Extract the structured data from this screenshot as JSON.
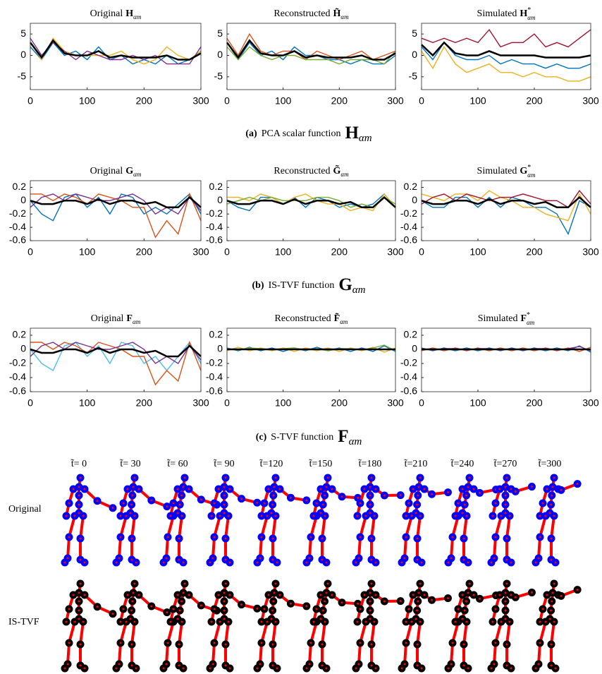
{
  "chart_data": [
    {
      "type": "line",
      "title": "Original",
      "title_symbol": "H",
      "title_subscript": "αm",
      "x": [
        0,
        20,
        40,
        60,
        80,
        100,
        120,
        140,
        160,
        180,
        200,
        220,
        240,
        260,
        280,
        300
      ],
      "xlim": [
        0,
        300
      ],
      "xticks": [
        0,
        100,
        200,
        300
      ],
      "ylim": [
        -8,
        7.5
      ],
      "yticks": [
        -5,
        0,
        5
      ],
      "series": [
        {
          "color": "#0072bd",
          "values": [
            2,
            -1,
            3,
            0,
            1,
            -1,
            2,
            -1,
            0,
            -2,
            -1,
            -2,
            0,
            -2,
            -1,
            1
          ]
        },
        {
          "color": "#edb120",
          "values": [
            3,
            -1,
            4,
            1,
            0,
            0,
            0,
            0,
            1,
            -1,
            -2,
            -1,
            2,
            0,
            -1,
            1
          ]
        },
        {
          "color": "#7e2f8e",
          "values": [
            4,
            0,
            3,
            1,
            -1,
            1,
            0,
            -1,
            -1,
            0,
            -1,
            0,
            -2,
            -2,
            -2,
            2
          ]
        },
        {
          "color": "#000000",
          "values": [
            3,
            -0.5,
            3.5,
            0.5,
            0,
            0,
            1,
            -0.5,
            0,
            -0.5,
            -0.5,
            -0.5,
            0,
            -1,
            -1,
            0.5
          ]
        }
      ]
    },
    {
      "type": "line",
      "title": "Reconstructed",
      "title_symbol": "H̃",
      "title_subscript": "αm",
      "x": [
        0,
        20,
        40,
        60,
        80,
        100,
        120,
        140,
        160,
        180,
        200,
        220,
        240,
        260,
        280,
        300
      ],
      "xlim": [
        0,
        300
      ],
      "xticks": [
        0,
        100,
        200,
        300
      ],
      "ylim": [
        -8,
        7.5
      ],
      "yticks": [
        -5,
        0,
        5
      ],
      "series": [
        {
          "color": "#0072bd",
          "values": [
            3,
            -1,
            3,
            0,
            1,
            -1,
            2,
            0,
            0,
            -1,
            -1,
            -2,
            -1,
            -2,
            -2,
            0
          ]
        },
        {
          "color": "#d95319",
          "values": [
            4,
            0,
            5,
            1,
            0,
            1,
            1,
            -1,
            1,
            0,
            -1,
            0,
            1,
            -1,
            0,
            1
          ]
        },
        {
          "color": "#77ac30",
          "values": [
            2,
            -1,
            2,
            0,
            -1,
            0,
            0,
            -1,
            -1,
            -1,
            -2,
            -1,
            -1,
            -1,
            -2,
            1
          ]
        },
        {
          "color": "#000000",
          "values": [
            3,
            -0.5,
            3.5,
            0.5,
            0,
            0,
            1,
            -0.5,
            0,
            -0.5,
            -0.5,
            -0.5,
            0,
            -1,
            -1,
            0.5
          ]
        }
      ]
    },
    {
      "type": "line",
      "title": "Simulated",
      "title_symbol": "H",
      "title_subscript": "αm",
      "title_superscript": "*",
      "x": [
        0,
        20,
        40,
        60,
        80,
        100,
        120,
        140,
        160,
        180,
        200,
        220,
        240,
        260,
        280,
        300
      ],
      "xlim": [
        0,
        300
      ],
      "xticks": [
        0,
        100,
        200,
        300
      ],
      "ylim": [
        -8,
        7.5
      ],
      "yticks": [
        -5,
        0,
        5
      ],
      "series": [
        {
          "color": "#a2142f",
          "values": [
            4,
            3,
            4,
            3,
            4,
            3,
            6,
            2,
            3,
            3,
            5,
            2,
            3,
            2,
            4,
            6
          ]
        },
        {
          "color": "#edb120",
          "values": [
            1,
            -3,
            2,
            -2,
            -4,
            -3,
            -2,
            -4,
            -4,
            -5,
            -4,
            -5,
            -5,
            -6,
            -6,
            -5
          ]
        },
        {
          "color": "#0072bd",
          "values": [
            2,
            -1,
            3,
            0,
            -1,
            -1,
            0,
            -2,
            -1,
            -2,
            -2,
            -3,
            -2,
            -3,
            -3,
            -2
          ]
        },
        {
          "color": "#000000",
          "values": [
            2.5,
            0,
            3,
            0.5,
            0,
            0,
            1,
            0,
            0,
            0,
            0,
            -0.5,
            -0.5,
            -0.5,
            -0.5,
            0
          ]
        }
      ]
    },
    {
      "type": "line",
      "title": "Original",
      "title_symbol": "G",
      "title_subscript": "αm",
      "x": [
        0,
        20,
        40,
        60,
        80,
        100,
        120,
        140,
        160,
        180,
        200,
        220,
        240,
        260,
        280,
        300
      ],
      "xlim": [
        0,
        300
      ],
      "xticks": [
        0,
        100,
        200,
        300
      ],
      "ylim": [
        -0.6,
        0.3
      ],
      "yticks": [
        -0.6,
        -0.4,
        -0.2,
        0,
        0.2
      ],
      "series": [
        {
          "color": "#0072bd",
          "values": [
            0,
            -0.2,
            -0.3,
            0.05,
            0.1,
            -0.1,
            0.05,
            -0.2,
            0.1,
            0.05,
            -0.2,
            -0.1,
            -0.2,
            -0.05,
            0.1,
            -0.2
          ]
        },
        {
          "color": "#d95319",
          "values": [
            0.1,
            0.1,
            0,
            0.1,
            0.05,
            -0.05,
            0.1,
            0.05,
            0,
            -0.1,
            -0.1,
            -0.55,
            -0.3,
            -0.5,
            0.1,
            -0.3
          ]
        },
        {
          "color": "#7e2f8e",
          "values": [
            -0.1,
            0.05,
            0.1,
            0,
            0.1,
            0.05,
            0,
            0,
            0.05,
            0.1,
            0,
            -0.2,
            -0.1,
            -0.2,
            0.05,
            -0.15
          ]
        },
        {
          "color": "#000000",
          "values": [
            0,
            -0.05,
            -0.05,
            0,
            0,
            -0.05,
            0.02,
            -0.05,
            0,
            0,
            -0.05,
            -0.02,
            -0.1,
            -0.1,
            0.05,
            -0.1
          ]
        }
      ]
    },
    {
      "type": "line",
      "title": "Reconstructed",
      "title_symbol": "G̃",
      "title_subscript": "αm",
      "x": [
        0,
        20,
        40,
        60,
        80,
        100,
        120,
        140,
        160,
        180,
        200,
        220,
        240,
        260,
        280,
        300
      ],
      "xlim": [
        0,
        300
      ],
      "xticks": [
        0,
        100,
        200,
        300
      ],
      "ylim": [
        -0.6,
        0.3
      ],
      "yticks": [
        -0.6,
        -0.4,
        -0.2,
        0,
        0.2
      ],
      "series": [
        {
          "color": "#0072bd",
          "values": [
            0,
            -0.1,
            -0.15,
            0.05,
            0.05,
            -0.05,
            0.05,
            -0.1,
            0.05,
            0,
            -0.1,
            -0.05,
            -0.1,
            -0.05,
            0.1,
            -0.1
          ]
        },
        {
          "color": "#edb120",
          "values": [
            0.05,
            0.05,
            0,
            0.1,
            0.05,
            -0.05,
            0.05,
            0.1,
            0,
            -0.05,
            -0.05,
            -0.15,
            -0.1,
            -0.15,
            0.1,
            -0.1
          ]
        },
        {
          "color": "#77ac30",
          "values": [
            -0.05,
            0,
            0.05,
            0,
            0.05,
            0,
            0,
            0,
            0.05,
            0.05,
            0,
            -0.1,
            -0.05,
            -0.1,
            0.05,
            -0.05
          ]
        },
        {
          "color": "#000000",
          "values": [
            0,
            -0.05,
            -0.05,
            0,
            0,
            -0.05,
            0.02,
            -0.05,
            0,
            0,
            -0.05,
            -0.02,
            -0.1,
            -0.1,
            0.05,
            -0.1
          ]
        }
      ]
    },
    {
      "type": "line",
      "title": "Simulated",
      "title_symbol": "G",
      "title_subscript": "αm",
      "title_superscript": "*",
      "x": [
        0,
        20,
        40,
        60,
        80,
        100,
        120,
        140,
        160,
        180,
        200,
        220,
        240,
        260,
        280,
        300
      ],
      "xlim": [
        0,
        300
      ],
      "xticks": [
        0,
        100,
        200,
        300
      ],
      "ylim": [
        -0.6,
        0.3
      ],
      "yticks": [
        -0.6,
        -0.4,
        -0.2,
        0,
        0.2
      ],
      "series": [
        {
          "color": "#0072bd",
          "values": [
            0,
            -0.1,
            -0.1,
            0.05,
            0.05,
            -0.1,
            0.05,
            -0.1,
            0.05,
            0,
            -0.1,
            -0.1,
            -0.2,
            -0.5,
            0,
            -0.1
          ]
        },
        {
          "color": "#edb120",
          "values": [
            0.1,
            0.05,
            0,
            0.1,
            0.1,
            0,
            0.15,
            0.05,
            0,
            -0.1,
            -0.1,
            -0.2,
            -0.25,
            -0.3,
            0.1,
            -0.2
          ]
        },
        {
          "color": "#a2142f",
          "values": [
            -0.05,
            0.05,
            0.1,
            0,
            0.1,
            0.05,
            0,
            0.05,
            0.05,
            0.1,
            0.05,
            0,
            0,
            -0.1,
            0.15,
            -0.05
          ]
        },
        {
          "color": "#000000",
          "values": [
            0,
            -0.05,
            -0.05,
            0,
            0,
            -0.05,
            0.02,
            -0.05,
            0,
            0,
            -0.05,
            -0.02,
            -0.1,
            -0.1,
            0.05,
            -0.1
          ]
        }
      ]
    },
    {
      "type": "line",
      "title": "Original",
      "title_symbol": "F",
      "title_subscript": "αm",
      "x": [
        0,
        20,
        40,
        60,
        80,
        100,
        120,
        140,
        160,
        180,
        200,
        220,
        240,
        260,
        280,
        300
      ],
      "xlim": [
        0,
        300
      ],
      "xticks": [
        0,
        100,
        200,
        300
      ],
      "ylim": [
        -0.6,
        0.3
      ],
      "yticks": [
        -0.6,
        -0.4,
        -0.2,
        0,
        0.2
      ],
      "series": [
        {
          "color": "#4dbeee",
          "values": [
            0,
            -0.2,
            -0.3,
            0.05,
            0.1,
            -0.1,
            0.05,
            -0.2,
            0.1,
            0.05,
            -0.2,
            -0.1,
            -0.3,
            -0.1,
            0.1,
            -0.2
          ]
        },
        {
          "color": "#d95319",
          "values": [
            0.1,
            0.1,
            0,
            0.1,
            0.05,
            -0.05,
            0.1,
            0.05,
            0,
            -0.1,
            -0.1,
            -0.5,
            -0.3,
            -0.45,
            0.1,
            -0.3
          ]
        },
        {
          "color": "#7e2f8e",
          "values": [
            -0.1,
            0.05,
            0.1,
            0,
            0.1,
            0.05,
            0,
            0,
            0.05,
            0.1,
            0,
            -0.2,
            -0.1,
            -0.2,
            0.05,
            -0.15
          ]
        },
        {
          "color": "#000000",
          "values": [
            0,
            -0.05,
            -0.05,
            0,
            0,
            -0.05,
            0.02,
            -0.05,
            0,
            0,
            -0.05,
            -0.02,
            -0.1,
            -0.1,
            0.05,
            -0.1
          ]
        }
      ]
    },
    {
      "type": "line",
      "title": "Reconstructed",
      "title_symbol": "F̃",
      "title_subscript": "αm",
      "x": [
        0,
        20,
        40,
        60,
        80,
        100,
        120,
        140,
        160,
        180,
        200,
        220,
        240,
        260,
        280,
        300
      ],
      "xlim": [
        0,
        300
      ],
      "xticks": [
        0,
        100,
        200,
        300
      ],
      "ylim": [
        -0.6,
        0.3
      ],
      "yticks": [
        -0.6,
        -0.4,
        -0.2,
        0,
        0.2
      ],
      "series": [
        {
          "color": "#0072bd",
          "values": [
            0.02,
            -0.02,
            0.03,
            -0.02,
            0.02,
            -0.03,
            0.02,
            -0.02,
            0.03,
            -0.02,
            0.02,
            -0.03,
            0.02,
            -0.03,
            0.05,
            -0.03
          ]
        },
        {
          "color": "#edb120",
          "values": [
            -0.02,
            0.03,
            -0.02,
            0.02,
            -0.02,
            0.02,
            -0.03,
            0.02,
            -0.02,
            0.02,
            -0.03,
            0.02,
            -0.02,
            0.03,
            -0.04,
            0.02
          ]
        },
        {
          "color": "#77ac30",
          "values": [
            0.01,
            -0.01,
            0.02,
            0.01,
            -0.01,
            0.01,
            0.02,
            -0.01,
            0.01,
            -0.02,
            0.01,
            0.01,
            -0.01,
            0.02,
            0.06,
            -0.02
          ]
        },
        {
          "color": "#000000",
          "values": [
            0,
            0,
            0,
            0,
            0,
            0,
            0,
            0,
            0,
            0,
            0,
            0,
            0,
            0,
            0,
            0
          ]
        }
      ]
    },
    {
      "type": "line",
      "title": "Simulated",
      "title_symbol": "F",
      "title_subscript": "αm",
      "title_superscript": "*",
      "x": [
        0,
        20,
        40,
        60,
        80,
        100,
        120,
        140,
        160,
        180,
        200,
        220,
        240,
        260,
        280,
        300
      ],
      "xlim": [
        0,
        300
      ],
      "xticks": [
        0,
        100,
        200,
        300
      ],
      "ylim": [
        -0.6,
        0.3
      ],
      "yticks": [
        -0.6,
        -0.4,
        -0.2,
        0,
        0.2
      ],
      "series": [
        {
          "color": "#0072bd",
          "values": [
            0.02,
            -0.02,
            0.02,
            -0.02,
            0.02,
            -0.02,
            0.02,
            -0.02,
            0.02,
            -0.02,
            0.02,
            -0.02,
            0.02,
            -0.02,
            0.05,
            -0.04
          ]
        },
        {
          "color": "#d95319",
          "values": [
            -0.02,
            0.02,
            -0.02,
            0.02,
            -0.02,
            0.02,
            -0.02,
            0.02,
            -0.02,
            0.02,
            -0.02,
            0.02,
            -0.02,
            0.02,
            -0.03,
            0.03
          ]
        },
        {
          "color": "#7e2f8e",
          "values": [
            0.01,
            -0.01,
            0.01,
            0.01,
            -0.01,
            0.01,
            0.01,
            -0.01,
            0.01,
            -0.01,
            0.01,
            0.01,
            -0.01,
            0.01,
            0.04,
            -0.02
          ]
        },
        {
          "color": "#000000",
          "values": [
            0,
            0,
            0,
            0,
            0,
            0,
            0,
            0,
            0,
            0,
            0,
            0,
            0,
            0,
            0,
            0
          ]
        }
      ]
    }
  ],
  "captions": [
    {
      "label": "(a)",
      "text": "PCA scalar function",
      "symbol": "H",
      "subscript": "αm"
    },
    {
      "label": "(b)",
      "text": "IS-TVF function",
      "symbol": "G",
      "subscript": "αm"
    },
    {
      "label": "(c)",
      "text": "S-TVF function",
      "symbol": "F",
      "subscript": "αm"
    }
  ],
  "skeletons": {
    "time_labels": [
      "t̃= 0",
      "t̃= 30",
      "t̃= 60",
      "t̃= 90",
      "t̃=120",
      "t̃=150",
      "t̃=180",
      "t̃=210",
      "t̃=240",
      "t̃=270",
      "t̃=300"
    ],
    "row_labels": [
      "Original",
      "IS-TVF"
    ]
  }
}
